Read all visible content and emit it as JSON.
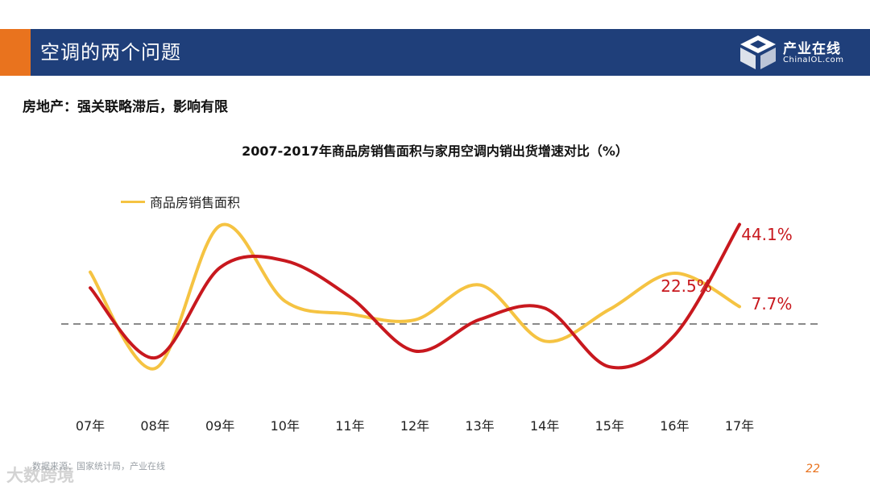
{
  "header": {
    "title": "空调的两个问题"
  },
  "logo": {
    "main": "产业在线",
    "sub": "ChinaIOL.com"
  },
  "subtitle": "房地产：强关联略滞后，影响有限",
  "chart_data": {
    "type": "line",
    "title": "2007-2017年商品房销售面积与家用空调内销出货增速对比（%）",
    "categories": [
      "07年",
      "08年",
      "09年",
      "10年",
      "11年",
      "12年",
      "13年",
      "14年",
      "15年",
      "16年",
      "17年"
    ],
    "series": [
      {
        "name": "商品房销售面积",
        "color": "#f5c342",
        "values": [
          23,
          -19.7,
          43.6,
          10.1,
          4.4,
          1.8,
          17.3,
          -7.6,
          6.5,
          22.5,
          7.7
        ]
      },
      {
        "name": "",
        "color": "#c8181e",
        "values": [
          16,
          -15,
          25,
          28,
          12,
          -12,
          2,
          7,
          -19,
          -5,
          44.1
        ]
      }
    ],
    "zero_line": true,
    "ylim": [
      -35,
      50
    ],
    "annotations": [
      "22.5%",
      "44.1%",
      "7.7%"
    ]
  },
  "footer": {
    "source": "数据来源：国家统计局，产业在线",
    "page": "22",
    "watermark": "大数跨境"
  }
}
